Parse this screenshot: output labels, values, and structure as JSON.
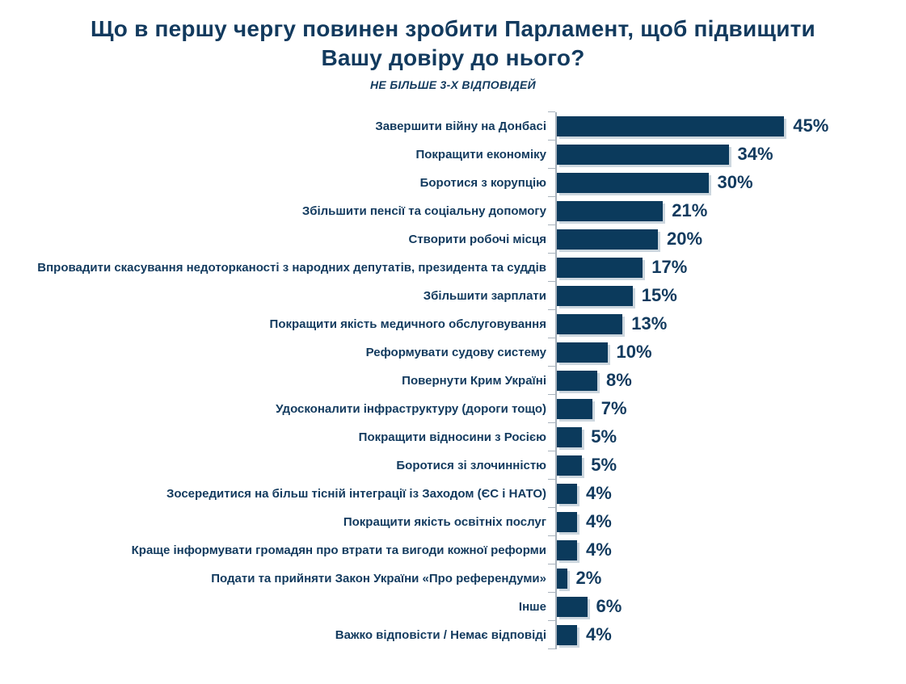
{
  "header": {
    "title": "Що в першу чергу повинен зробити Парламент, щоб підвищити Вашу довіру до нього?",
    "subtitle": "НЕ БІЛЬШЕ 3-Х ВІДПОВІДЕЙ"
  },
  "colors": {
    "bar": "#0b3a5c",
    "text": "#123a5e",
    "axis": "#a9b3bd",
    "bar_shadow": "#ccd6de"
  },
  "chart_data": {
    "type": "bar",
    "orientation": "horizontal",
    "title": "Що в першу чергу повинен зробити Парламент, щоб підвищити Вашу довіру до нього?",
    "subtitle": "НЕ БІЛЬШЕ 3-Х ВІДПОВІДЕЙ",
    "xlabel": "",
    "ylabel": "",
    "xlim": [
      0,
      50
    ],
    "grid": false,
    "legend": false,
    "value_suffix": "%",
    "categories": [
      "Завершити війну на Донбасі",
      "Покращити економіку",
      "Боротися з корупцію",
      "Збільшити пенсії та соціальну допомогу",
      "Створити робочі місця",
      "Впровадити скасування недоторканості з народних депутатів, президента та суддів",
      "Збільшити зарплати",
      "Покращити якість медичного обслуговування",
      "Реформувати судову систему",
      "Повернути Крим Україні",
      "Удосконалити інфраструктуру (дороги тощо)",
      "Покращити відносини з Росією",
      "Боротися зі злочинністю",
      "Зосередитися на більш тісній інтеграції із Заходом (ЄС і НАТО)",
      "Покращити якість освітніх послуг",
      "Краще інформувати громадян про втрати та вигоди кожної реформи",
      "Подати та прийняти Закон України «Про референдуми»",
      "Інше",
      "Важко відповісти / Немає відповіді"
    ],
    "values": [
      45,
      34,
      30,
      21,
      20,
      17,
      15,
      13,
      10,
      8,
      7,
      5,
      5,
      4,
      4,
      4,
      2,
      6,
      4
    ]
  }
}
